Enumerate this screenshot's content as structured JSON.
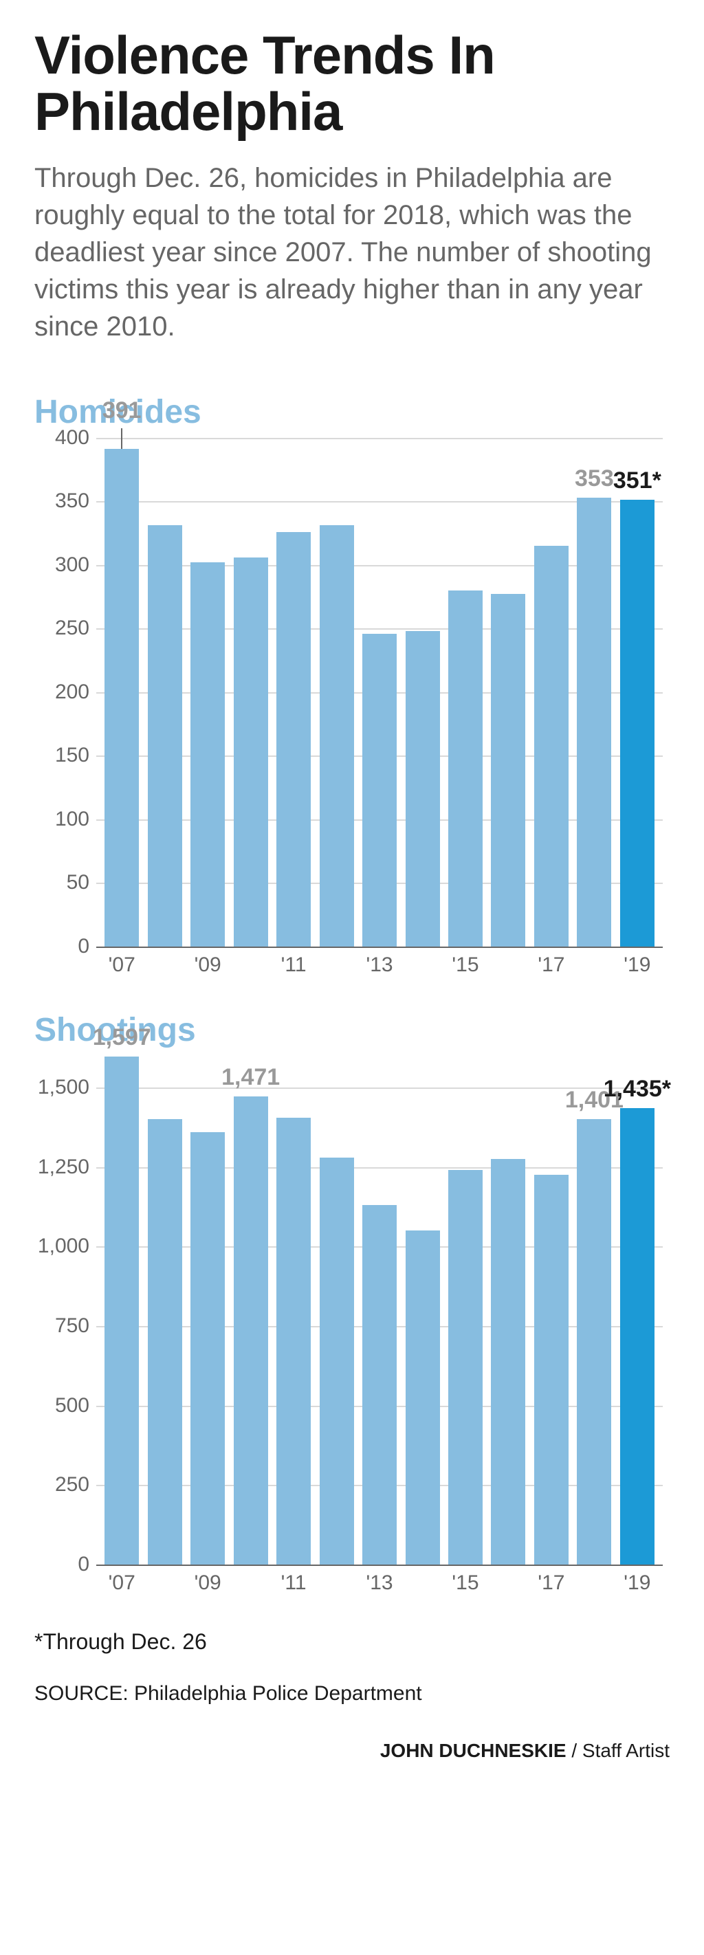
{
  "title": "Violence Trends In Philadelphia",
  "subtitle": "Through Dec. 26, homicides in Philadelphia are roughly equal to the total for 2018, which was the deadliest year since 2007. The number of shooting victims this year is already higher than in any year since 2010.",
  "colors": {
    "bar_default": "#87bde0",
    "bar_highlight": "#1c9ad6",
    "grid": "#d9d9d9",
    "baseline": "#666666",
    "text_axis": "#666666",
    "text_body": "#666666",
    "text_title": "#1a1a1a",
    "chart_title": "#87bde0",
    "callout_muted": "#999999",
    "callout_strong": "#1a1a1a",
    "background": "#ffffff"
  },
  "typography": {
    "title_fontsize": 78,
    "subtitle_fontsize": 40,
    "chart_title_fontsize": 48,
    "axis_fontsize": 30,
    "callout_fontsize": 34
  },
  "charts": [
    {
      "id": "homicides",
      "title": "Homicides",
      "type": "bar",
      "ylim": [
        0,
        400
      ],
      "ytick_step": 50,
      "yticks": [
        0,
        50,
        100,
        150,
        200,
        250,
        300,
        350,
        400
      ],
      "categories": [
        "'07",
        "'08",
        "'09",
        "'10",
        "'11",
        "'12",
        "'13",
        "'14",
        "'15",
        "'16",
        "'17",
        "'18",
        "'19"
      ],
      "xlabels_shown": [
        "'07",
        "",
        "'09",
        "",
        "'11",
        "",
        "'13",
        "",
        "'15",
        "",
        "'17",
        "",
        "'19"
      ],
      "values": [
        391,
        331,
        302,
        306,
        326,
        331,
        246,
        248,
        280,
        277,
        315,
        353,
        351
      ],
      "highlight_index": 12,
      "callouts": [
        {
          "index": 0,
          "text": "391",
          "color": "#999999",
          "tick": true
        },
        {
          "index": 11,
          "text": "353",
          "color": "#999999",
          "tick": false
        },
        {
          "index": 12,
          "text": "351*",
          "color": "#1a1a1a",
          "tick": false
        }
      ],
      "bar_width": 0.8
    },
    {
      "id": "shootings",
      "title": "Shootings",
      "type": "bar",
      "ylim": [
        0,
        1600
      ],
      "ytick_step": 250,
      "yticks": [
        0,
        250,
        500,
        750,
        1000,
        1250,
        1500
      ],
      "categories": [
        "'07",
        "'08",
        "'09",
        "'10",
        "'11",
        "'12",
        "'13",
        "'14",
        "'15",
        "'16",
        "'17",
        "'18",
        "'19"
      ],
      "xlabels_shown": [
        "'07",
        "",
        "'09",
        "",
        "'11",
        "",
        "'13",
        "",
        "'15",
        "",
        "'17",
        "",
        "'19"
      ],
      "values": [
        1597,
        1400,
        1360,
        1471,
        1405,
        1280,
        1130,
        1050,
        1240,
        1275,
        1225,
        1401,
        1435
      ],
      "highlight_index": 12,
      "callouts": [
        {
          "index": 0,
          "text": "1,597",
          "color": "#999999",
          "tick": false
        },
        {
          "index": 3,
          "text": "1,471",
          "color": "#999999",
          "tick": false
        },
        {
          "index": 11,
          "text": "1,401",
          "color": "#999999",
          "tick": false
        },
        {
          "index": 12,
          "text": "1,435*",
          "color": "#1a1a1a",
          "tick": false
        }
      ],
      "bar_width": 0.8
    }
  ],
  "footnote": "*Through Dec. 26",
  "source": "SOURCE: Philadelphia Police Department",
  "credit_name": "JOHN DUCHNESKIE",
  "credit_role": " / Staff Artist"
}
